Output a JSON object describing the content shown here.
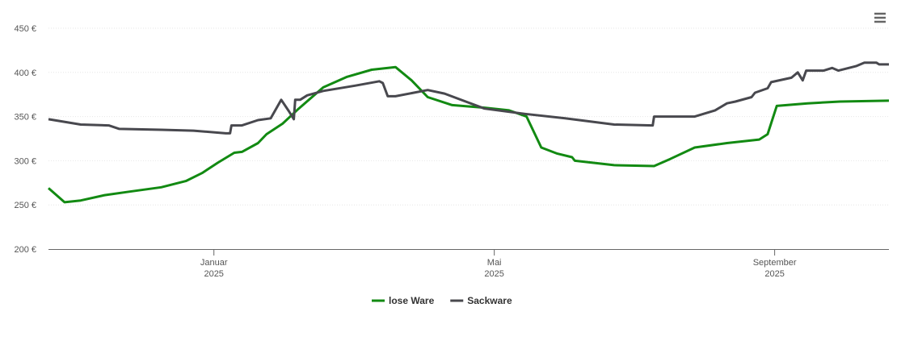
{
  "chart_data": {
    "type": "line",
    "xlim": [
      -2.36,
      9.63
    ],
    "xticks": [
      {
        "value": 0,
        "label": "Januar 2025"
      },
      {
        "value": 4,
        "label": "Mai 2025"
      },
      {
        "value": 8,
        "label": "September 2025"
      }
    ],
    "ylim": [
      200,
      450
    ],
    "yticks": [
      {
        "value": 200,
        "label": "200 €"
      },
      {
        "value": 250,
        "label": "250 €"
      },
      {
        "value": 300,
        "label": "300 €"
      },
      {
        "value": 350,
        "label": "350 €"
      },
      {
        "value": 400,
        "label": "400 €"
      },
      {
        "value": 450,
        "label": "450 €"
      }
    ],
    "grid": true,
    "legend": "bottom",
    "series": [
      {
        "name": "lose Ware",
        "color": "#128a12",
        "x": [
          -2.36,
          -2.13,
          -1.9,
          -1.56,
          -1.21,
          -0.75,
          -0.4,
          -0.17,
          0.06,
          0.29,
          0.4,
          0.63,
          0.75,
          0.98,
          1.21,
          1.56,
          1.9,
          2.25,
          2.59,
          2.82,
          3.05,
          3.4,
          3.86,
          4.21,
          4.46,
          4.67,
          4.9,
          5.11,
          5.15,
          5.71,
          6.28,
          6.51,
          6.86,
          7.32,
          7.78,
          7.9,
          8.03,
          8.47,
          8.93,
          9.63
        ],
        "values": [
          269,
          253,
          255,
          261,
          265,
          270,
          277,
          286,
          298,
          309,
          310,
          320,
          330,
          342,
          359,
          383,
          395,
          403,
          406,
          391,
          372,
          363,
          360,
          357,
          350,
          315,
          308,
          304,
          300,
          295,
          294,
          302,
          315,
          320,
          324,
          330,
          362,
          365,
          367,
          368
        ]
      },
      {
        "name": "Sackware",
        "color": "#48484e",
        "x": [
          -2.36,
          -1.9,
          -1.5,
          -1.35,
          -0.75,
          -0.29,
          0.17,
          0.23,
          0.25,
          0.4,
          0.63,
          0.81,
          0.96,
          1.07,
          1.14,
          1.16,
          1.23,
          1.33,
          1.56,
          2.02,
          2.36,
          2.41,
          2.48,
          2.59,
          3.05,
          3.29,
          3.86,
          4.44,
          5.01,
          5.71,
          6.26,
          6.28,
          6.86,
          7.15,
          7.32,
          7.44,
          7.67,
          7.72,
          7.9,
          7.95,
          8.24,
          8.33,
          8.4,
          8.45,
          8.7,
          8.82,
          8.91,
          9.16,
          9.28,
          9.45,
          9.49,
          9.63
        ],
        "values": [
          347,
          341,
          340,
          336,
          335,
          334,
          331,
          331,
          340,
          340,
          346,
          348,
          369,
          356,
          347,
          369,
          369,
          374,
          379,
          385,
          390,
          388,
          373,
          373,
          380,
          376,
          359,
          353,
          348,
          341,
          340,
          350,
          350,
          357,
          365,
          367,
          372,
          377,
          382,
          389,
          394,
          400,
          391,
          402,
          402,
          405,
          402,
          407,
          411,
          411,
          409,
          409
        ]
      }
    ]
  }
}
